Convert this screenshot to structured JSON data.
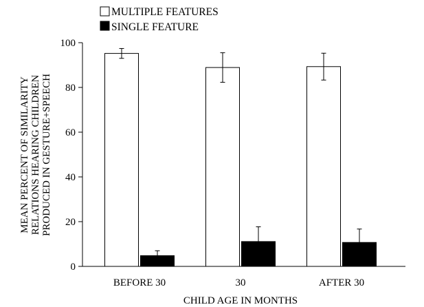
{
  "chart_data": {
    "type": "bar",
    "categories": [
      "BEFORE 30",
      "30",
      "AFTER 30"
    ],
    "series": [
      {
        "name": "MULTIPLE FEATURES",
        "values": [
          95.2,
          88.9,
          89.3
        ],
        "error": [
          2.2,
          6.6,
          6.0
        ],
        "fill": "#ffffff"
      },
      {
        "name": "SINGLE FEATURE",
        "values": [
          4.8,
          11.1,
          10.7
        ],
        "error": [
          2.2,
          6.6,
          6.0
        ],
        "fill": "#000000"
      }
    ],
    "xlabel": "CHILD AGE IN MONTHS",
    "ylabel_lines": [
      "MEAN PERCENT OF SIMILARITY",
      "RELATIONS HEARING CHILDREN",
      "PRODUCED IN GESTURE+SPEECH"
    ],
    "ylim": [
      0,
      100
    ],
    "yticks": [
      0,
      20,
      40,
      60,
      80,
      100
    ],
    "legend_position": "top-left",
    "grid": false
  }
}
